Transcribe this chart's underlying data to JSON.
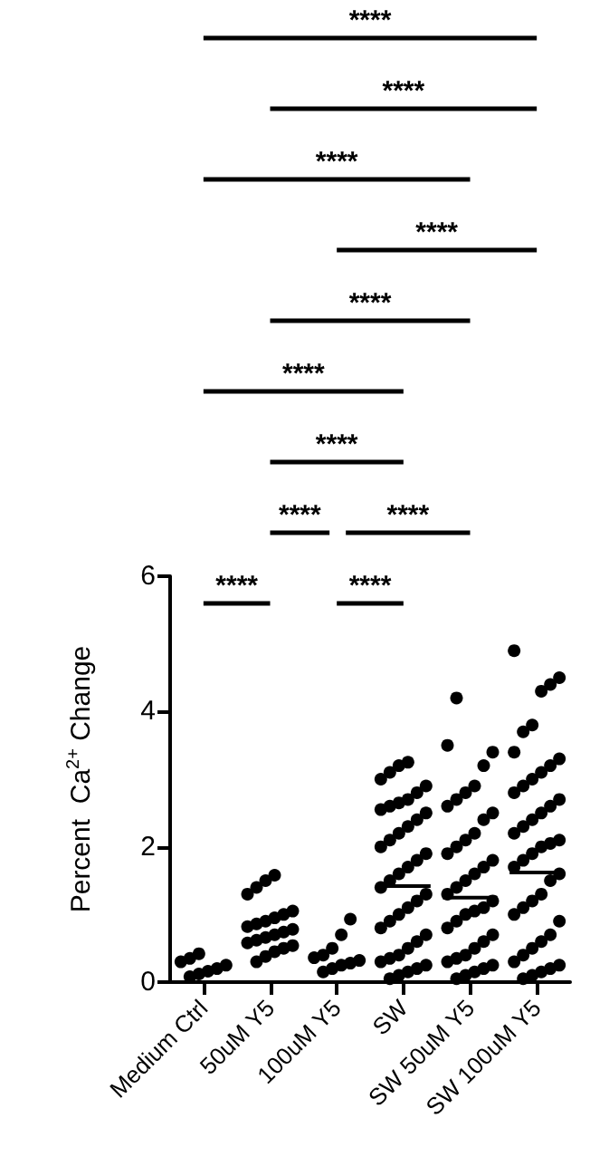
{
  "chart_data": {
    "type": "scatter",
    "ylabel": "Percent  Ca$^{2+}$ Change",
    "categories": [
      "Medium Ctrl",
      "50uM Y5",
      "100uM Y5",
      "SW",
      "SW 50uM Y5",
      "SW 100uM Y5"
    ],
    "series": [
      {
        "color": "#000000",
        "marker": "circle",
        "x": [
          "Medium Ctrl",
          "Medium Ctrl",
          "Medium Ctrl",
          "Medium Ctrl",
          "Medium Ctrl",
          "Medium Ctrl",
          "Medium Ctrl",
          "Medium Ctrl",
          "50uM Y5",
          "50uM Y5",
          "50uM Y5",
          "50uM Y5",
          "50uM Y5",
          "50uM Y5",
          "50uM Y5",
          "50uM Y5",
          "50uM Y5",
          "50uM Y5",
          "50uM Y5",
          "50uM Y5",
          "50uM Y5",
          "50uM Y5",
          "50uM Y5",
          "50uM Y5",
          "50uM Y5",
          "50uM Y5",
          "50uM Y5",
          "50uM Y5",
          "50uM Y5",
          "100uM Y5",
          "100uM Y5",
          "100uM Y5",
          "100uM Y5",
          "100uM Y5",
          "100uM Y5",
          "100uM Y5",
          "100uM Y5",
          "100uM Y5",
          "100uM Y5",
          "SW",
          "SW",
          "SW",
          "SW",
          "SW",
          "SW",
          "SW",
          "SW",
          "SW",
          "SW",
          "SW",
          "SW",
          "SW",
          "SW",
          "SW",
          "SW",
          "SW",
          "SW",
          "SW",
          "SW",
          "SW",
          "SW",
          "SW",
          "SW",
          "SW",
          "SW",
          "SW",
          "SW",
          "SW",
          "SW",
          "SW",
          "SW",
          "SW",
          "SW",
          "SW",
          "SW",
          "SW",
          "SW",
          "SW",
          "SW 50uM Y5",
          "SW 50uM Y5",
          "SW 50uM Y5",
          "SW 50uM Y5",
          "SW 50uM Y5",
          "SW 50uM Y5",
          "SW 50uM Y5",
          "SW 50uM Y5",
          "SW 50uM Y5",
          "SW 50uM Y5",
          "SW 50uM Y5",
          "SW 50uM Y5",
          "SW 50uM Y5",
          "SW 50uM Y5",
          "SW 50uM Y5",
          "SW 50uM Y5",
          "SW 50uM Y5",
          "SW 50uM Y5",
          "SW 50uM Y5",
          "SW 50uM Y5",
          "SW 50uM Y5",
          "SW 50uM Y5",
          "SW 50uM Y5",
          "SW 50uM Y5",
          "SW 50uM Y5",
          "SW 50uM Y5",
          "SW 50uM Y5",
          "SW 50uM Y5",
          "SW 50uM Y5",
          "SW 50uM Y5",
          "SW 50uM Y5",
          "SW 50uM Y5",
          "SW 50uM Y5",
          "SW 50uM Y5",
          "SW 50uM Y5",
          "SW 50uM Y5",
          "SW 50uM Y5",
          "SW 100uM Y5",
          "SW 100uM Y5",
          "SW 100uM Y5",
          "SW 100uM Y5",
          "SW 100uM Y5",
          "SW 100uM Y5",
          "SW 100uM Y5",
          "SW 100uM Y5",
          "SW 100uM Y5",
          "SW 100uM Y5",
          "SW 100uM Y5",
          "SW 100uM Y5",
          "SW 100uM Y5",
          "SW 100uM Y5",
          "SW 100uM Y5",
          "SW 100uM Y5",
          "SW 100uM Y5",
          "SW 100uM Y5",
          "SW 100uM Y5",
          "SW 100uM Y5",
          "SW 100uM Y5",
          "SW 100uM Y5",
          "SW 100uM Y5",
          "SW 100uM Y5",
          "SW 100uM Y5",
          "SW 100uM Y5",
          "SW 100uM Y5",
          "SW 100uM Y5",
          "SW 100uM Y5",
          "SW 100uM Y5",
          "SW 100uM Y5",
          "SW 100uM Y5",
          "SW 100uM Y5",
          "SW 100uM Y5",
          "SW 100uM Y5",
          "SW 100uM Y5",
          "SW 100uM Y5",
          "SW 100uM Y5",
          "SW 100uM Y5",
          "SW 100uM Y5",
          "SW 100uM Y5",
          "SW 100uM Y5"
        ],
        "values": [
          0.08,
          0.12,
          0.16,
          0.2,
          0.25,
          0.3,
          0.35,
          0.42,
          0.3,
          0.38,
          0.45,
          0.5,
          0.54,
          0.58,
          0.62,
          0.66,
          0.7,
          0.74,
          0.78,
          0.82,
          0.86,
          0.9,
          0.95,
          1.0,
          1.05,
          1.3,
          1.4,
          1.5,
          1.58,
          0.15,
          0.2,
          0.25,
          0.28,
          0.32,
          0.36,
          0.4,
          0.5,
          0.7,
          0.93,
          0.05,
          0.1,
          0.15,
          0.2,
          0.25,
          0.3,
          0.35,
          0.4,
          0.5,
          0.6,
          0.7,
          0.8,
          0.9,
          1.0,
          1.1,
          1.2,
          1.3,
          1.4,
          1.5,
          1.6,
          1.7,
          1.8,
          1.9,
          2.0,
          2.1,
          2.2,
          2.3,
          2.4,
          2.5,
          2.55,
          2.6,
          2.65,
          2.7,
          2.8,
          2.9,
          3.0,
          3.1,
          3.2,
          3.25,
          0.05,
          0.1,
          0.15,
          0.2,
          0.25,
          0.3,
          0.35,
          0.4,
          0.5,
          0.6,
          0.7,
          0.8,
          0.9,
          1.0,
          1.05,
          1.1,
          1.2,
          1.3,
          1.4,
          1.5,
          1.6,
          1.7,
          1.8,
          1.9,
          2.0,
          2.1,
          2.2,
          2.4,
          2.5,
          2.6,
          2.7,
          2.8,
          2.9,
          3.2,
          3.4,
          3.5,
          4.2,
          0.05,
          0.1,
          0.15,
          0.2,
          0.25,
          0.3,
          0.4,
          0.5,
          0.6,
          0.7,
          0.9,
          1.0,
          1.1,
          1.2,
          1.3,
          1.5,
          1.6,
          1.7,
          1.8,
          1.9,
          2.0,
          2.05,
          2.1,
          2.2,
          2.3,
          2.4,
          2.5,
          2.6,
          2.7,
          2.8,
          2.9,
          3.0,
          3.1,
          3.2,
          3.3,
          3.4,
          3.7,
          3.8,
          4.3,
          4.4,
          4.5,
          4.9
        ]
      },
      {
        "type": "box",
        "color": "#000000",
        "boxes": [
          null,
          null,
          null,
          {
            "low": 1.42,
            "q1": 1.42,
            "median": 1.42,
            "q3": 1.42,
            "high": 1.42
          },
          {
            "low": 1.25,
            "q1": 1.25,
            "median": 1.25,
            "q3": 1.25,
            "high": 1.25
          },
          {
            "low": 1.62,
            "q1": 1.62,
            "median": 1.62,
            "q3": 1.62,
            "high": 1.62
          }
        ]
      }
    ],
    "ylim": [
      0,
      6
    ],
    "yticks": [
      0,
      2,
      4,
      6
    ],
    "grid": false,
    "annotations": [
      "****",
      "****",
      "****",
      "****",
      "****",
      "****",
      "****",
      "****",
      "****",
      "****",
      "****"
    ]
  }
}
